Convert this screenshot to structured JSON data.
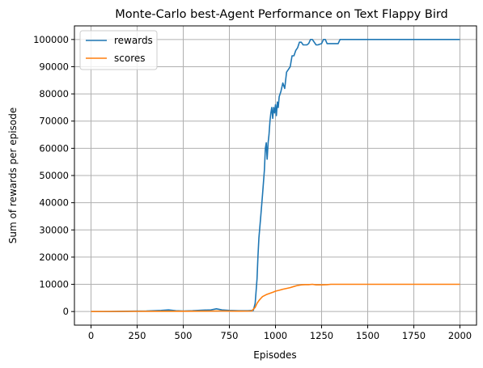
{
  "chart_data": {
    "type": "line",
    "title": "Monte-Carlo best-Agent Performance on Text Flappy Bird",
    "xlabel": "Episodes",
    "ylabel": "Sum of rewards per episode",
    "xlim": [
      -90,
      2090
    ],
    "ylim": [
      -5000,
      105000
    ],
    "xticks": [
      0,
      250,
      500,
      750,
      1000,
      1250,
      1500,
      1750,
      2000
    ],
    "yticks": [
      0,
      10000,
      20000,
      30000,
      40000,
      50000,
      60000,
      70000,
      80000,
      90000,
      100000
    ],
    "grid": true,
    "legend_position": "top-left",
    "series": [
      {
        "name": "rewards",
        "color": "#1f77b4",
        "x": [
          0,
          100,
          200,
          300,
          380,
          420,
          460,
          500,
          550,
          600,
          650,
          680,
          710,
          750,
          800,
          850,
          880,
          890,
          900,
          905,
          910,
          920,
          930,
          940,
          945,
          950,
          955,
          960,
          965,
          970,
          975,
          980,
          985,
          990,
          995,
          1000,
          1005,
          1010,
          1015,
          1020,
          1030,
          1040,
          1050,
          1060,
          1070,
          1080,
          1090,
          1100,
          1110,
          1120,
          1130,
          1140,
          1150,
          1160,
          1170,
          1180,
          1190,
          1200,
          1210,
          1220,
          1230,
          1250,
          1260,
          1270,
          1280,
          1300,
          1320,
          1340,
          1350,
          1400,
          1600,
          1800,
          2000
        ],
        "y": [
          0,
          0,
          100,
          200,
          400,
          600,
          300,
          200,
          300,
          500,
          600,
          1000,
          600,
          400,
          300,
          300,
          400,
          3000,
          12000,
          20000,
          27000,
          35000,
          43000,
          52000,
          60000,
          62000,
          56000,
          62000,
          65000,
          70000,
          73000,
          75000,
          71000,
          75000,
          73000,
          76000,
          72000,
          77000,
          75000,
          79000,
          81000,
          84000,
          82000,
          88000,
          89000,
          90000,
          94000,
          94000,
          96000,
          97000,
          99000,
          99000,
          98000,
          98000,
          98000,
          98500,
          100000,
          100000,
          99000,
          98000,
          98000,
          98500,
          100000,
          100000,
          98500,
          98500,
          98500,
          98500,
          100000,
          100000,
          100000,
          100000,
          100000
        ]
      },
      {
        "name": "scores",
        "color": "#ff7f0e",
        "x": [
          0,
          200,
          400,
          500,
          600,
          700,
          800,
          870,
          890,
          900,
          910,
          920,
          930,
          950,
          970,
          990,
          1000,
          1020,
          1040,
          1060,
          1080,
          1100,
          1120,
          1140,
          1160,
          1180,
          1200,
          1220,
          1250,
          1280,
          1300,
          1350,
          1400,
          1600,
          1800,
          2000
        ],
        "y": [
          0,
          50,
          100,
          100,
          150,
          200,
          150,
          200,
          1500,
          3000,
          4000,
          4800,
          5500,
          6200,
          6700,
          7200,
          7500,
          7800,
          8200,
          8500,
          8800,
          9200,
          9600,
          9800,
          9900,
          9900,
          10000,
          9800,
          9800,
          9900,
          10000,
          10000,
          10000,
          10000,
          10000,
          10000
        ]
      }
    ]
  }
}
